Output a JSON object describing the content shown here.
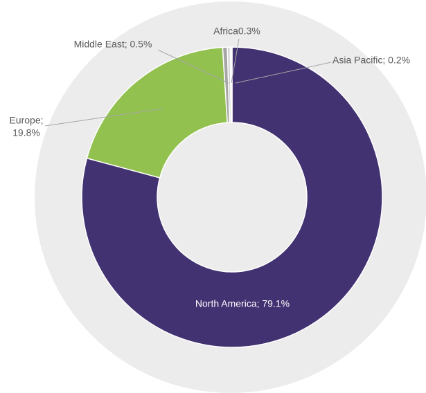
{
  "chart_data": {
    "type": "donut",
    "categories": [
      "North America",
      "Europe",
      "Middle East",
      "Africa",
      "Asia Pacific"
    ],
    "values": [
      79.1,
      19.8,
      0.5,
      0.3,
      0.2
    ],
    "value_labels": [
      [
        "North America; 79.1%"
      ],
      [
        "Europe;",
        "19.8%"
      ],
      [
        "Middle East; 0.5%"
      ],
      [
        "Africa0.3%"
      ],
      [
        "Asia Pacific; 0.2%"
      ]
    ],
    "colors": [
      "#433272",
      "#92c150",
      "#a6a6a6",
      "#d0d0d0",
      "#f2f2f2"
    ]
  }
}
